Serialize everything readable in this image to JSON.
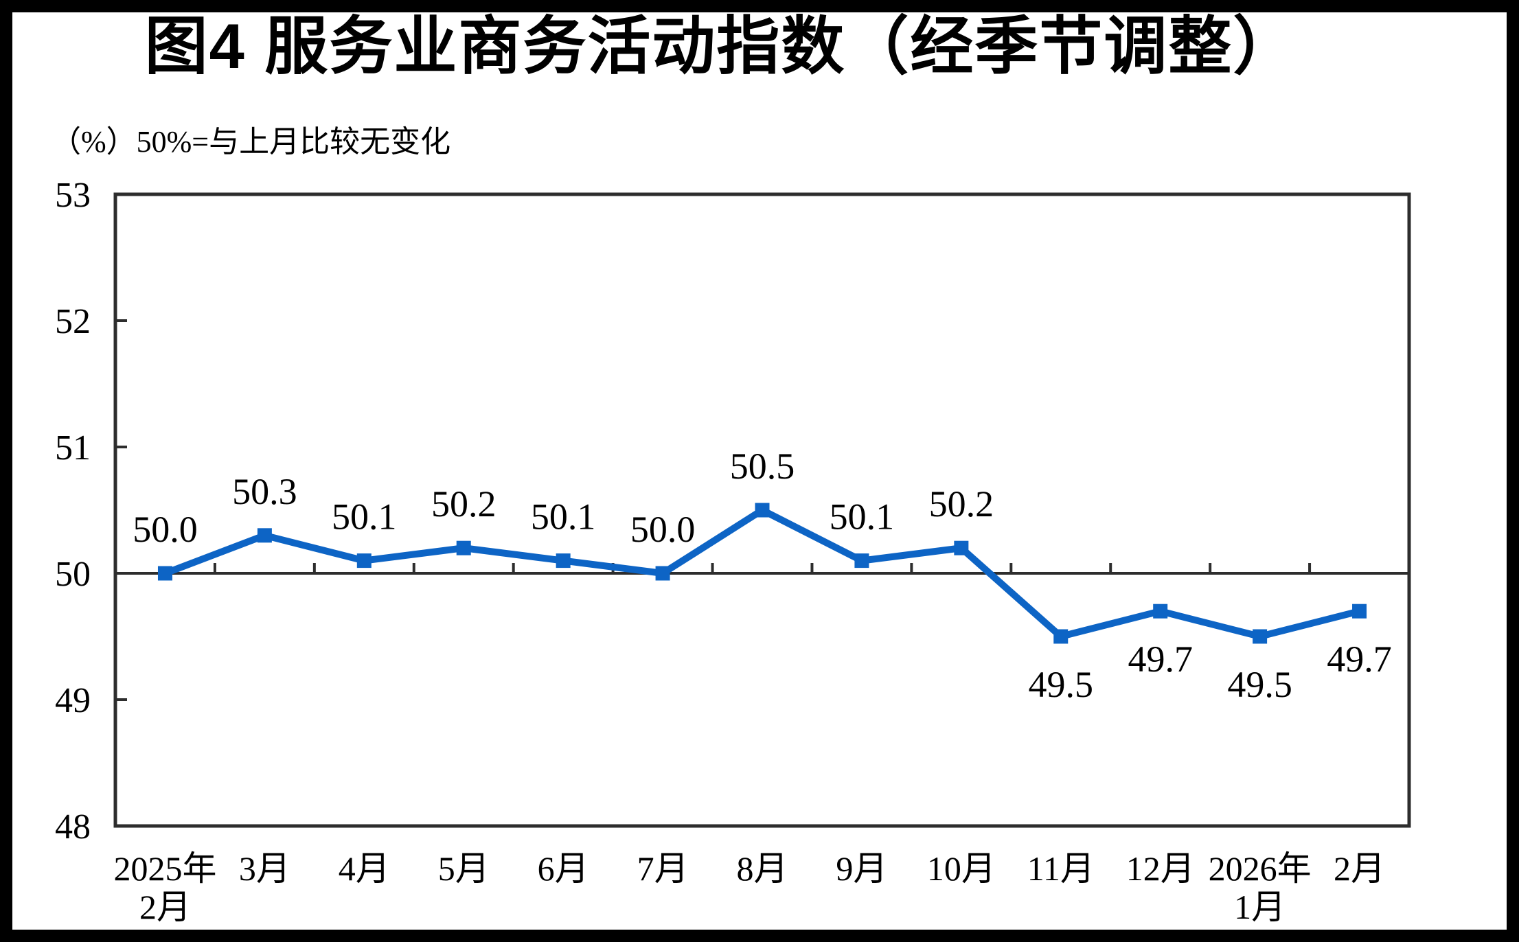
{
  "page": {
    "background": "#ffffff",
    "frame_color": "#000000"
  },
  "header": {
    "title": "图4  服务业商务活动指数（经季节调整）",
    "unit_note": "（%）50%=与上月比较无变化"
  },
  "chart_data": {
    "type": "line",
    "title": "图4  服务业商务活动指数（经季节调整）",
    "unit_label": "（%）50%=与上月比较无变化",
    "categories": [
      [
        "2025年",
        "2月"
      ],
      [
        "3月"
      ],
      [
        "4月"
      ],
      [
        "5月"
      ],
      [
        "6月"
      ],
      [
        "7月"
      ],
      [
        "8月"
      ],
      [
        "9月"
      ],
      [
        "10月"
      ],
      [
        "11月"
      ],
      [
        "12月"
      ],
      [
        "2026年",
        "1月"
      ],
      [
        "2月"
      ]
    ],
    "values": [
      50.0,
      50.3,
      50.1,
      50.2,
      50.1,
      50.0,
      50.5,
      50.1,
      50.2,
      49.5,
      49.7,
      49.5,
      49.7
    ],
    "labels": [
      "50.0",
      "50.3",
      "50.1",
      "50.2",
      "50.1",
      "50.0",
      "50.5",
      "50.1",
      "50.2",
      "49.5",
      "49.7",
      "49.5",
      "49.7"
    ],
    "ylim": [
      48,
      53
    ],
    "yticks": [
      48,
      49,
      50,
      51,
      52,
      53
    ],
    "reference_line_y": 50,
    "grid": false,
    "legend": "none",
    "marker": "square",
    "line_color": "#0D64C5",
    "marker_color": "#0D64C5",
    "axis_color": "#2d2d2d",
    "text_color": "#000000"
  }
}
